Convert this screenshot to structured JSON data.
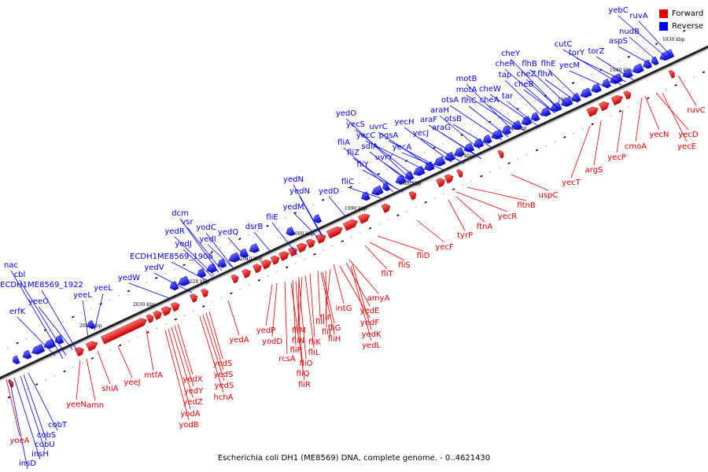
{
  "legend": {
    "forward": {
      "label": "Forward",
      "color": "#e00000"
    },
    "reverse": {
      "label": "Reverse",
      "color": "#0000ee"
    }
  },
  "caption": "Escherichia coli DH1 (ME8569) DNA, complete genome. - 0..4621430",
  "ruler": {
    "unit": "kbp",
    "tick_labels": [
      "1930 kbp",
      "1940 kbp",
      "1950 kbp",
      "1960 kbp",
      "1970 kbp",
      "1980 kbp",
      "1990 kbp",
      "2000 kbp",
      "2010 kbp",
      "2020 kbp",
      "2030 kbp",
      "2040 kbp"
    ]
  },
  "reverse_genes": [
    "yebC",
    "ruvA",
    "nudB",
    "aspS",
    "cutC",
    "torY",
    "torZ",
    "yecM",
    "cheY",
    "cheR",
    "flhB",
    "flhE",
    "flhA",
    "tap",
    "cheZ",
    "cheB",
    "motB",
    "motA",
    "cheW",
    "otsA",
    "flhC",
    "cheA",
    "tar",
    "araH",
    "araF",
    "otsB",
    "yedO",
    "yecS",
    "uvrC",
    "pgsA",
    "yecH",
    "yecJ",
    "araG",
    "fliA",
    "yecC",
    "sdiA",
    "fliZ",
    "yecA",
    "fliY",
    "uvrY",
    "fliC",
    "yedN",
    "yedN",
    "yedD",
    "yedM",
    "fliE",
    "dsrB",
    "dcm",
    "vsr",
    "yedR",
    "yodC",
    "yedI",
    "yedJ",
    "yedQ",
    "ECDH1ME8569_1906",
    "yedV",
    "yedW",
    "nac",
    "cbl",
    "ECDH1ME8569_1922",
    "yeeL",
    "yeeL",
    "yeeO",
    "erfK",
    "cobT",
    "cobS",
    "cobU",
    "insH",
    "insD"
  ],
  "forward_genes": [
    "ruvC",
    "yecD",
    "cmoA",
    "yecN",
    "yecE",
    "yecP",
    "argS",
    "yecT",
    "uspC",
    "fltnB",
    "yecR",
    "ftnA",
    "tyrP",
    "yecF",
    "fliD",
    "fliS",
    "fliT",
    "amyA",
    "intG",
    "yedE",
    "fliF",
    "yedF",
    "fliI",
    "fliJ",
    "yedK",
    "fliG",
    "fliH",
    "yedL",
    "fliM",
    "fliK",
    "fliN",
    "fliL",
    "yedP",
    "yodD",
    "fliP",
    "rcsA",
    "fliO",
    "fliQ",
    "fliR",
    "yedA",
    "yedS",
    "yedS",
    "yedS",
    "hchA",
    "mtfA",
    "yedX",
    "yedY",
    "yedZ",
    "yodA",
    "yodB",
    "yeeJ",
    "shiA",
    "yeeN",
    "amn",
    "yoeA"
  ]
}
